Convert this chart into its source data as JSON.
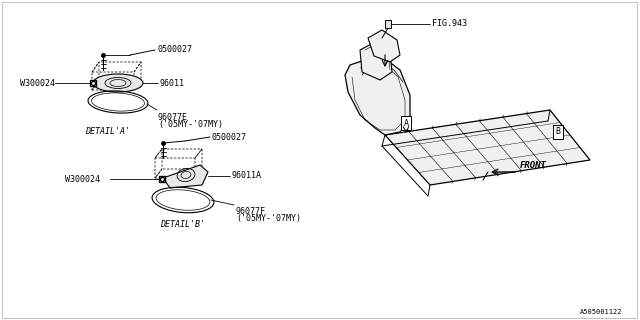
{
  "bg_color": "#ffffff",
  "line_color": "#000000",
  "part_number_ref": "A505001122",
  "labels": {
    "0500027_A": "0500027",
    "96011": "96011",
    "W300024_A": "W300024",
    "96077E_1": "96077E",
    "96077E_2": "('05MY-'07MY)",
    "detail_A": "DETAIL'A'",
    "0500027_B": "0500027",
    "96011A": "96011A",
    "W300024_B": "W300024",
    "96077F_1": "96077F",
    "96077F_2": "('05MY-'07MY)",
    "detail_B": "DETAIL'B'",
    "fig943": "FIG.943",
    "front": "FRONT",
    "label_A": "A",
    "label_B": "B"
  },
  "font_size": 6.0
}
